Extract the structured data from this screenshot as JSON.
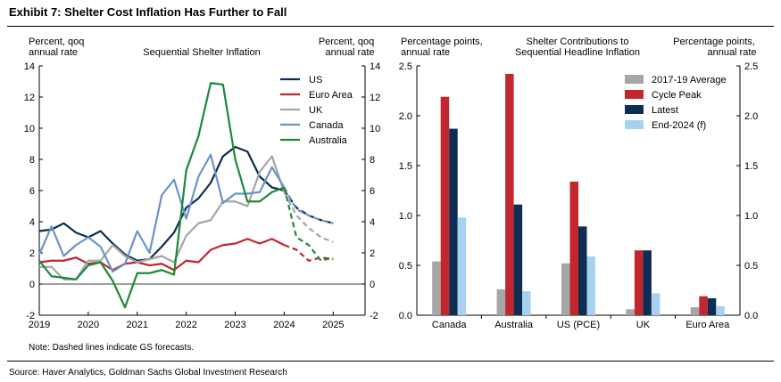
{
  "title": "Exhibit 7: Shelter Cost Inflation Has Further to Fall",
  "source": "Source: Haver Analytics, Goldman Sachs Global Investment Research",
  "chart_data": [
    {
      "type": "line",
      "title": "Sequential Shelter Inflation",
      "ylabel_left": [
        "Percent, qoq",
        "annual rate"
      ],
      "ylabel_right": [
        "Percent, qoq",
        "annual rate"
      ],
      "x_ticks": [
        "2019",
        "2020",
        "2021",
        "2022",
        "2023",
        "2024",
        "2025"
      ],
      "y_ticks": [
        "-2",
        "0",
        "2",
        "4",
        "6",
        "8",
        "10",
        "12",
        "14"
      ],
      "ylim": [
        -2,
        14
      ],
      "xlim": [
        2019,
        2025.65
      ],
      "note": "Note: Dashed lines indicate GS forecasts.",
      "legend_position": "top-right",
      "series": [
        {
          "name": "US",
          "color": "#0d2d52",
          "actual": [
            [
              2019.0,
              3.4
            ],
            [
              2019.25,
              3.5
            ],
            [
              2019.5,
              3.9
            ],
            [
              2019.75,
              3.3
            ],
            [
              2020.0,
              3.0
            ],
            [
              2020.25,
              3.4
            ],
            [
              2020.5,
              2.6
            ],
            [
              2020.75,
              1.9
            ],
            [
              2021.0,
              1.5
            ],
            [
              2021.25,
              1.6
            ],
            [
              2021.5,
              2.4
            ],
            [
              2021.75,
              3.3
            ],
            [
              2022.0,
              4.9
            ],
            [
              2022.25,
              5.5
            ],
            [
              2022.5,
              6.5
            ],
            [
              2022.75,
              8.2
            ],
            [
              2023.0,
              8.8
            ],
            [
              2023.25,
              8.5
            ],
            [
              2023.5,
              6.9
            ],
            [
              2023.75,
              6.2
            ],
            [
              2024.0,
              6.0
            ]
          ],
          "forecast": [
            [
              2024.0,
              6.0
            ],
            [
              2024.25,
              4.9
            ],
            [
              2024.5,
              4.4
            ],
            [
              2024.75,
              4.1
            ],
            [
              2025.0,
              3.9
            ]
          ]
        },
        {
          "name": "Euro Area",
          "color": "#c1272d",
          "actual": [
            [
              2019.0,
              1.4
            ],
            [
              2019.25,
              1.5
            ],
            [
              2019.5,
              1.5
            ],
            [
              2019.75,
              1.7
            ],
            [
              2020.0,
              1.3
            ],
            [
              2020.25,
              1.4
            ],
            [
              2020.5,
              0.9
            ],
            [
              2020.75,
              1.3
            ],
            [
              2021.0,
              1.4
            ],
            [
              2021.25,
              1.2
            ],
            [
              2021.5,
              1.3
            ],
            [
              2021.75,
              0.9
            ],
            [
              2022.0,
              1.5
            ],
            [
              2022.25,
              1.4
            ],
            [
              2022.5,
              2.2
            ],
            [
              2022.75,
              2.5
            ],
            [
              2023.0,
              2.6
            ],
            [
              2023.25,
              2.9
            ],
            [
              2023.5,
              2.6
            ],
            [
              2023.75,
              2.9
            ],
            [
              2024.0,
              2.5
            ]
          ],
          "forecast": [
            [
              2024.0,
              2.5
            ],
            [
              2024.25,
              2.2
            ],
            [
              2024.5,
              1.5
            ],
            [
              2024.75,
              1.7
            ],
            [
              2025.0,
              1.6
            ]
          ]
        },
        {
          "name": "UK",
          "color": "#a6a6a6",
          "actual": [
            [
              2019.0,
              1.1
            ],
            [
              2019.25,
              1.1
            ],
            [
              2019.5,
              0.3
            ],
            [
              2019.75,
              0.3
            ],
            [
              2020.0,
              1.5
            ],
            [
              2020.25,
              1.5
            ],
            [
              2020.5,
              2.5
            ],
            [
              2020.75,
              1.8
            ],
            [
              2021.0,
              1.4
            ],
            [
              2021.25,
              1.6
            ],
            [
              2021.5,
              1.8
            ],
            [
              2021.75,
              1.4
            ],
            [
              2022.0,
              3.1
            ],
            [
              2022.25,
              3.9
            ],
            [
              2022.5,
              4.1
            ],
            [
              2022.75,
              5.3
            ],
            [
              2023.0,
              5.3
            ],
            [
              2023.25,
              5.0
            ],
            [
              2023.5,
              7.2
            ],
            [
              2023.75,
              8.2
            ],
            [
              2024.0,
              5.9
            ]
          ],
          "forecast": [
            [
              2024.0,
              5.9
            ],
            [
              2024.25,
              4.4
            ],
            [
              2024.5,
              3.6
            ],
            [
              2024.75,
              3.0
            ],
            [
              2025.0,
              2.7
            ]
          ]
        },
        {
          "name": "Canada",
          "color": "#6b93c4",
          "actual": [
            [
              2019.0,
              1.9
            ],
            [
              2019.25,
              3.7
            ],
            [
              2019.5,
              1.8
            ],
            [
              2019.75,
              2.5
            ],
            [
              2020.0,
              3.0
            ],
            [
              2020.25,
              2.4
            ],
            [
              2020.5,
              0.8
            ],
            [
              2020.75,
              1.3
            ],
            [
              2021.0,
              3.4
            ],
            [
              2021.25,
              2.0
            ],
            [
              2021.5,
              5.7
            ],
            [
              2021.75,
              6.7
            ],
            [
              2022.0,
              4.2
            ],
            [
              2022.25,
              6.9
            ],
            [
              2022.5,
              8.3
            ],
            [
              2022.75,
              5.2
            ],
            [
              2023.0,
              5.8
            ],
            [
              2023.25,
              5.8
            ],
            [
              2023.5,
              5.9
            ],
            [
              2023.75,
              7.5
            ],
            [
              2024.0,
              6.2
            ]
          ],
          "forecast": [
            [
              2024.0,
              6.2
            ],
            [
              2024.25,
              4.8
            ],
            [
              2024.5,
              4.4
            ],
            [
              2024.75,
              4.1
            ],
            [
              2025.0,
              3.9
            ]
          ]
        },
        {
          "name": "Australia",
          "color": "#1a8a3a",
          "actual": [
            [
              2019.0,
              1.5
            ],
            [
              2019.25,
              0.5
            ],
            [
              2019.5,
              0.4
            ],
            [
              2019.75,
              0.3
            ],
            [
              2020.0,
              1.2
            ],
            [
              2020.25,
              1.4
            ],
            [
              2020.5,
              0.2
            ],
            [
              2020.75,
              -1.5
            ],
            [
              2021.0,
              0.7
            ],
            [
              2021.25,
              0.7
            ],
            [
              2021.5,
              0.9
            ],
            [
              2021.75,
              0.6
            ],
            [
              2022.0,
              7.3
            ],
            [
              2022.25,
              9.5
            ],
            [
              2022.5,
              12.9
            ],
            [
              2022.75,
              12.8
            ],
            [
              2023.0,
              8.0
            ],
            [
              2023.25,
              5.3
            ],
            [
              2023.5,
              5.3
            ],
            [
              2023.75,
              5.9
            ],
            [
              2024.0,
              6.2
            ]
          ],
          "forecast": [
            [
              2024.0,
              6.2
            ],
            [
              2024.25,
              3.0
            ],
            [
              2024.5,
              2.5
            ],
            [
              2024.75,
              1.5
            ],
            [
              2025.0,
              1.7
            ]
          ]
        }
      ]
    },
    {
      "type": "bar",
      "title": [
        "Shelter Contributions to",
        "Sequential Headline Inflation"
      ],
      "ylabel_left": [
        "Percentage points,",
        "annual rate"
      ],
      "ylabel_right": [
        "Percentage points,",
        "annual rate"
      ],
      "categories": [
        "Canada",
        "Australia",
        "US (PCE)",
        "UK",
        "Euro Area"
      ],
      "y_ticks": [
        "0.0",
        "0.5",
        "1.0",
        "1.5",
        "2.0",
        "2.5"
      ],
      "ylim": [
        0,
        2.5
      ],
      "legend_position": "top-right",
      "series": [
        {
          "name": "2017-19 Average",
          "color": "#a6a6a6",
          "values": [
            0.54,
            0.26,
            0.52,
            0.06,
            0.08
          ]
        },
        {
          "name": "Cycle Peak",
          "color": "#c1272d",
          "values": [
            2.19,
            2.42,
            1.34,
            0.65,
            0.19
          ]
        },
        {
          "name": "Latest",
          "color": "#0d2d52",
          "values": [
            1.87,
            1.11,
            0.89,
            0.65,
            0.17
          ]
        },
        {
          "name": "End-2024 (f)",
          "color": "#a8d1f0",
          "values": [
            0.98,
            0.24,
            0.59,
            0.22,
            0.09
          ]
        }
      ]
    }
  ]
}
